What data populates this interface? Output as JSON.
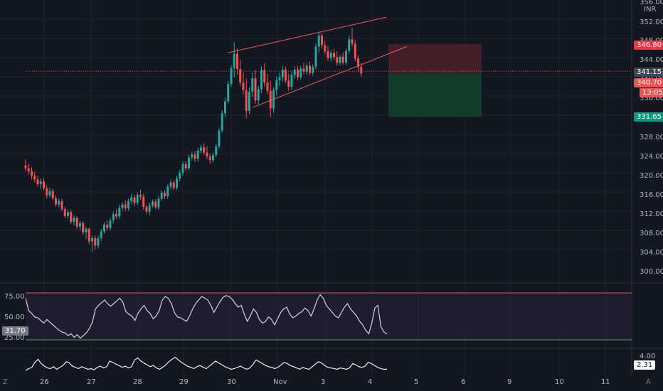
{
  "currency": "INR",
  "price_axis": {
    "top_label": "356.00",
    "ticks": [
      "352.00",
      "348.00",
      "344.00",
      "340.00",
      "336.00",
      "332.00",
      "328.00",
      "324.00",
      "320.00",
      "316.00",
      "312.00",
      "308.00",
      "304.00",
      "300.00"
    ]
  },
  "time_axis": {
    "ticks": [
      "26",
      "27",
      "28",
      "29",
      "30",
      "Nov",
      "3",
      "4",
      "5",
      "6",
      "9",
      "10",
      "11"
    ]
  },
  "price_tags": {
    "stop": "346.80",
    "last": "341.15",
    "current": "340.70",
    "countdown": "13:05",
    "target": "331.65"
  },
  "rsi": {
    "ticks": [
      "75.00",
      "50.00",
      "25.00"
    ],
    "value_tag": "31.70"
  },
  "indicator2": {
    "tick": "4.00",
    "value_tag": "2.31"
  },
  "corner": {
    "left": "Z",
    "right": "A"
  },
  "colors": {
    "background": "#131722",
    "up": "#26a69a",
    "down": "#ef5350",
    "channel": "#f05a5a",
    "rsi_line": "#d1d4dc",
    "rsi_fill": "#2a1f3a",
    "rsi_upper": "#e05353",
    "rsi_lower": "#4caf50",
    "stop_zone": "#4a1f27",
    "target_zone": "#12402a"
  },
  "chart_data": {
    "type": "candlestick",
    "scale": {
      "price_min": 300,
      "price_max": 356
    },
    "candles_ohlc": [
      [
        321.5,
        322.8,
        320.3,
        320.9
      ],
      [
        320.9,
        321.9,
        319.6,
        320.3
      ],
      [
        320.3,
        321.1,
        318.6,
        319.4
      ],
      [
        319.4,
        320.2,
        318.0,
        318.6
      ],
      [
        318.6,
        319.3,
        317.1,
        317.6
      ],
      [
        317.6,
        318.8,
        316.6,
        318.2
      ],
      [
        318.2,
        318.9,
        316.3,
        316.8
      ],
      [
        316.8,
        317.4,
        314.6,
        315.3
      ],
      [
        315.3,
        316.9,
        314.8,
        316.2
      ],
      [
        316.2,
        316.7,
        314.2,
        314.7
      ],
      [
        314.7,
        315.3,
        312.9,
        313.4
      ],
      [
        313.4,
        314.7,
        312.8,
        314.1
      ],
      [
        314.1,
        314.6,
        312.0,
        312.4
      ],
      [
        312.4,
        312.9,
        310.6,
        311.0
      ],
      [
        311.0,
        312.3,
        310.4,
        311.8
      ],
      [
        311.8,
        312.2,
        309.3,
        309.8
      ],
      [
        309.8,
        311.2,
        309.1,
        310.6
      ],
      [
        310.6,
        310.9,
        308.3,
        308.8
      ],
      [
        308.8,
        310.0,
        307.9,
        309.5
      ],
      [
        309.5,
        309.9,
        307.1,
        307.6
      ],
      [
        307.6,
        308.8,
        306.2,
        308.3
      ],
      [
        308.3,
        308.6,
        305.1,
        305.7
      ],
      [
        305.7,
        307.0,
        303.6,
        306.4
      ],
      [
        306.4,
        306.9,
        304.0,
        304.8
      ],
      [
        304.8,
        306.9,
        304.2,
        306.4
      ],
      [
        306.4,
        308.3,
        305.8,
        307.8
      ],
      [
        307.8,
        309.7,
        307.3,
        309.2
      ],
      [
        309.2,
        310.0,
        307.9,
        308.5
      ],
      [
        308.5,
        310.6,
        308.0,
        310.1
      ],
      [
        310.1,
        311.9,
        309.4,
        311.4
      ],
      [
        311.4,
        312.4,
        310.4,
        310.9
      ],
      [
        310.9,
        313.3,
        310.4,
        312.7
      ],
      [
        312.7,
        313.9,
        312.2,
        313.4
      ],
      [
        313.4,
        314.2,
        312.0,
        312.6
      ],
      [
        312.6,
        314.6,
        312.1,
        314.1
      ],
      [
        314.1,
        315.6,
        313.5,
        314.9
      ],
      [
        314.9,
        315.4,
        313.1,
        313.7
      ],
      [
        313.7,
        315.9,
        313.2,
        315.4
      ],
      [
        315.4,
        316.5,
        314.4,
        315.0
      ],
      [
        315.0,
        315.6,
        312.3,
        312.9
      ],
      [
        312.9,
        313.3,
        311.4,
        311.9
      ],
      [
        311.9,
        313.8,
        311.2,
        313.2
      ],
      [
        313.2,
        314.4,
        312.7,
        314.0
      ],
      [
        314.0,
        314.5,
        312.4,
        312.8
      ],
      [
        312.8,
        315.2,
        312.3,
        314.6
      ],
      [
        314.6,
        316.3,
        314.1,
        315.8
      ],
      [
        315.8,
        316.4,
        314.5,
        315.1
      ],
      [
        315.1,
        317.6,
        314.6,
        317.1
      ],
      [
        317.1,
        318.6,
        316.5,
        318.0
      ],
      [
        318.0,
        318.5,
        316.4,
        316.9
      ],
      [
        316.9,
        319.4,
        316.4,
        318.8
      ],
      [
        318.8,
        320.6,
        318.2,
        320.0
      ],
      [
        320.0,
        322.4,
        319.4,
        321.8
      ],
      [
        321.8,
        322.4,
        320.3,
        320.9
      ],
      [
        320.9,
        323.8,
        320.4,
        323.2
      ],
      [
        323.2,
        324.4,
        322.6,
        323.8
      ],
      [
        323.8,
        324.5,
        322.3,
        322.9
      ],
      [
        322.9,
        325.2,
        322.3,
        324.6
      ],
      [
        324.6,
        325.9,
        324.0,
        325.3
      ],
      [
        325.3,
        326.1,
        323.7,
        324.2
      ],
      [
        324.2,
        325.5,
        322.8,
        323.4
      ],
      [
        323.4,
        323.9,
        321.9,
        322.6
      ],
      [
        322.6,
        324.2,
        322.1,
        323.7
      ],
      [
        323.7,
        326.1,
        323.2,
        325.5
      ],
      [
        325.5,
        329.4,
        325.0,
        328.8
      ],
      [
        328.8,
        333.1,
        328.3,
        332.4
      ],
      [
        332.4,
        335.6,
        331.6,
        334.9
      ],
      [
        334.9,
        339.1,
        334.4,
        338.5
      ],
      [
        338.5,
        342.4,
        337.9,
        341.8
      ],
      [
        341.8,
        347.2,
        339.9,
        344.8
      ],
      [
        344.8,
        345.9,
        340.4,
        341.6
      ],
      [
        341.6,
        343.6,
        338.1,
        338.8
      ],
      [
        338.8,
        340.9,
        336.3,
        337.2
      ],
      [
        337.2,
        339.6,
        331.3,
        332.9
      ],
      [
        332.9,
        337.8,
        332.2,
        336.9
      ],
      [
        336.9,
        340.8,
        335.8,
        339.7
      ],
      [
        339.7,
        341.4,
        334.4,
        335.1
      ],
      [
        335.1,
        338.1,
        334.3,
        337.4
      ],
      [
        337.4,
        342.2,
        336.6,
        341.4
      ],
      [
        341.4,
        342.8,
        338.0,
        338.8
      ],
      [
        338.8,
        340.6,
        336.4,
        337.1
      ],
      [
        337.1,
        339.2,
        331.6,
        333.4
      ],
      [
        333.4,
        337.8,
        332.5,
        337.2
      ],
      [
        337.2,
        340.1,
        336.1,
        339.3
      ],
      [
        339.3,
        340.9,
        338.0,
        339.9
      ],
      [
        339.9,
        342.3,
        338.9,
        341.5
      ],
      [
        341.5,
        342.1,
        338.7,
        339.2
      ],
      [
        339.2,
        340.7,
        337.1,
        337.9
      ],
      [
        337.9,
        341.0,
        337.3,
        340.4
      ],
      [
        340.4,
        342.2,
        339.6,
        341.5
      ],
      [
        341.5,
        342.3,
        339.3,
        339.9
      ],
      [
        339.9,
        342.3,
        339.4,
        341.7
      ],
      [
        341.7,
        343.0,
        340.5,
        341.1
      ],
      [
        341.1,
        342.9,
        340.4,
        342.3
      ],
      [
        342.3,
        343.2,
        340.3,
        340.8
      ],
      [
        340.8,
        342.6,
        340.2,
        342.1
      ],
      [
        342.1,
        346.9,
        341.5,
        346.3
      ],
      [
        346.3,
        349.3,
        345.1,
        348.6
      ],
      [
        348.6,
        349.1,
        345.9,
        346.6
      ],
      [
        346.6,
        347.4,
        344.7,
        345.3
      ],
      [
        345.3,
        346.4,
        343.3,
        343.9
      ],
      [
        343.9,
        345.6,
        343.2,
        345.0
      ],
      [
        345.0,
        345.8,
        343.4,
        344.1
      ],
      [
        344.1,
        345.3,
        342.3,
        342.9
      ],
      [
        342.9,
        344.6,
        342.4,
        344.2
      ],
      [
        344.2,
        345.1,
        342.5,
        343.0
      ],
      [
        343.0,
        345.9,
        342.4,
        345.4
      ],
      [
        345.4,
        348.6,
        344.8,
        347.8
      ],
      [
        347.8,
        350.2,
        346.3,
        346.9
      ],
      [
        346.9,
        347.6,
        343.2,
        343.8
      ],
      [
        343.8,
        344.5,
        341.0,
        342.1
      ],
      [
        342.1,
        342.8,
        340.0,
        340.7
      ]
    ],
    "channel": {
      "upper": [
        [
          29.9,
          344.5
        ],
        [
          31.2,
          346.0
        ],
        [
          33.5,
          349.0
        ],
        [
          34.3,
          350.0
        ]
      ],
      "lower": [
        [
          30.4,
          330.0
        ],
        [
          32.0,
          334.5
        ],
        [
          33.7,
          341.0
        ],
        [
          34.7,
          345.0
        ]
      ]
    },
    "rsi": [
      72,
      58,
      55,
      51,
      50,
      47,
      44,
      48,
      45,
      42,
      39,
      36,
      34,
      33,
      30,
      32,
      28,
      31,
      27,
      30,
      33,
      38,
      45,
      60,
      64,
      67,
      70,
      66,
      63,
      66,
      69,
      72,
      68,
      57,
      54,
      52,
      47,
      55,
      60,
      64,
      58,
      55,
      49,
      52,
      58,
      70,
      74,
      72,
      66,
      56,
      51,
      50,
      48,
      46,
      52,
      60,
      66,
      70,
      74,
      72,
      70,
      64,
      56,
      62,
      68,
      73,
      75,
      74,
      71,
      66,
      62,
      64,
      54,
      46,
      52,
      60,
      56,
      48,
      44,
      46,
      51,
      48,
      42,
      49,
      56,
      60,
      62,
      54,
      50,
      52,
      55,
      57,
      61,
      58,
      52,
      60,
      70,
      76,
      72,
      64,
      60,
      56,
      52,
      50,
      56,
      62,
      66,
      60,
      56,
      52,
      46,
      42,
      36,
      32,
      44,
      61,
      64,
      40,
      34,
      31.7
    ],
    "indicator2": [
      2.1,
      2.4,
      2.6,
      3.4,
      3.9,
      3.2,
      2.8,
      2.5,
      2.4,
      2.7,
      2.3,
      2.6,
      2.9,
      3.5,
      3.3,
      2.8,
      2.6,
      2.4,
      2.7,
      2.5,
      2.3,
      2.4,
      2.2,
      2.6,
      2.8,
      2.5,
      2.7,
      3.6,
      3.4,
      3.1,
      2.9,
      2.6,
      2.8,
      2.5,
      2.7,
      3.8,
      4.1,
      3.6,
      3.3,
      3.0,
      2.7,
      2.9,
      2.5,
      2.3,
      2.6,
      3.0,
      3.5,
      3.9,
      4.2,
      3.8,
      3.4,
      3.1,
      2.8,
      2.6,
      2.4,
      2.7,
      2.9,
      2.6,
      2.4,
      2.8,
      3.2,
      3.6,
      3.3,
      3.0,
      2.7,
      2.5,
      2.3,
      2.4,
      2.6,
      2.8,
      2.5,
      2.3,
      2.5,
      3.1,
      3.8,
      3.5,
      3.2,
      2.9,
      2.7,
      2.6,
      2.4,
      2.6,
      3.0,
      3.4,
      3.2,
      2.9,
      2.7,
      2.5,
      2.3,
      2.6,
      2.4,
      2.3,
      2.7,
      3.1,
      3.5,
      3.3,
      2.9,
      2.6,
      2.5,
      2.4,
      2.3,
      2.5,
      2.4,
      2.3,
      2.5,
      3.2,
      3.0,
      2.7,
      2.6,
      2.8,
      3.4,
      3.2,
      2.9,
      2.6,
      2.4,
      2.3,
      2.31
    ],
    "risk_reward": {
      "entry": 340.7,
      "stop": 346.8,
      "target": 331.65
    }
  }
}
